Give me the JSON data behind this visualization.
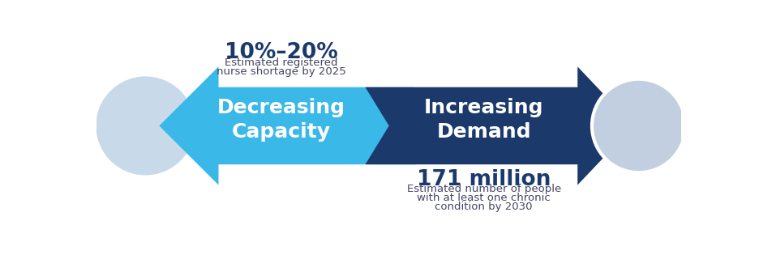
{
  "bg_color": "#ffffff",
  "arrow_left_color": "#3ab8e8",
  "arrow_right_color": "#1b3a6b",
  "stat1_bold": "10%–20%",
  "stat1_sub1": "Estimated registered",
  "stat1_sub2": "nurse shortage by 2025",
  "label_left": "Decreasing\nCapacity",
  "label_right": "Increasing\nDemand",
  "stat2_bold": "171 million",
  "stat2_sub1": "Estimated number of people",
  "stat2_sub2": "with at least one chronic",
  "stat2_sub3": "condition by 2030",
  "stat1_bold_color": "#1b3a6b",
  "stat1_sub_color": "#444466",
  "stat2_bold_color": "#1b3a6b",
  "stat2_sub_color": "#444466",
  "label_left_color": "#ffffff",
  "label_right_color": "#ffffff",
  "circle_left_color": "#b8cce4",
  "circle_right_color": "#b8cce4"
}
